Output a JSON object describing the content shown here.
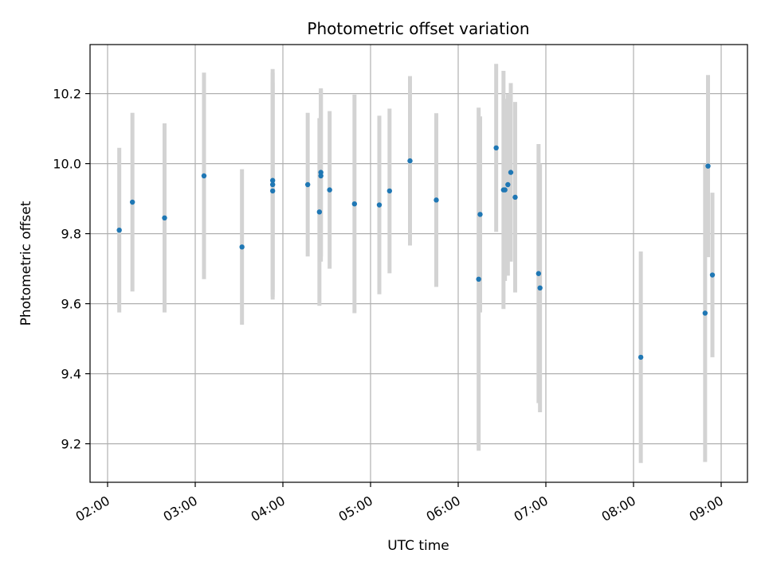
{
  "chart_data": {
    "type": "scatter",
    "title": "Photometric offset variation",
    "xlabel": "UTC time",
    "ylabel": "Photometric offset",
    "x_ticks": [
      "02:00",
      "03:00",
      "04:00",
      "05:00",
      "06:00",
      "07:00",
      "08:00",
      "09:00"
    ],
    "y_ticks": [
      "9.2",
      "9.4",
      "9.6",
      "9.8",
      "10.0",
      "10.2"
    ],
    "xlim": [
      "01:48",
      "09:18"
    ],
    "ylim": [
      9.09,
      10.34
    ],
    "grid": true,
    "colors": {
      "point": "#1f77b4",
      "errorbar": "#d3d3d3",
      "grid": "#b0b0b0"
    },
    "series": [
      {
        "points": [
          {
            "x": "02:08",
            "y": 9.81,
            "yerr": 0.235
          },
          {
            "x": "02:17",
            "y": 9.89,
            "yerr": 0.255
          },
          {
            "x": "02:39",
            "y": 9.845,
            "yerr": 0.27
          },
          {
            "x": "03:06",
            "y": 9.965,
            "yerr": 0.295
          },
          {
            "x": "03:32",
            "y": 9.762,
            "yerr": 0.222
          },
          {
            "x": "03:53",
            "y": 9.952,
            "yerr": 0.318
          },
          {
            "x": "03:53",
            "y": 9.94,
            "yerr": 0.32
          },
          {
            "x": "03:53",
            "y": 9.922,
            "yerr": 0.31
          },
          {
            "x": "04:17",
            "y": 9.94,
            "yerr": 0.205
          },
          {
            "x": "04:25",
            "y": 9.862,
            "yerr": 0.268
          },
          {
            "x": "04:26",
            "y": 9.975,
            "yerr": 0.24
          },
          {
            "x": "04:26",
            "y": 9.965,
            "yerr": 0.245
          },
          {
            "x": "04:32",
            "y": 9.925,
            "yerr": 0.225
          },
          {
            "x": "04:49",
            "y": 9.885,
            "yerr": 0.312
          },
          {
            "x": "05:06",
            "y": 9.882,
            "yerr": 0.255
          },
          {
            "x": "05:13",
            "y": 9.922,
            "yerr": 0.235
          },
          {
            "x": "05:27",
            "y": 10.008,
            "yerr": 0.242
          },
          {
            "x": "05:45",
            "y": 9.896,
            "yerr": 0.248
          },
          {
            "x": "06:14",
            "y": 9.67,
            "yerr": 0.49
          },
          {
            "x": "06:15",
            "y": 9.855,
            "yerr": 0.28
          },
          {
            "x": "06:26",
            "y": 10.045,
            "yerr": 0.24
          },
          {
            "x": "06:31",
            "y": 9.925,
            "yerr": 0.34
          },
          {
            "x": "06:32",
            "y": 9.925,
            "yerr": 0.26
          },
          {
            "x": "06:34",
            "y": 9.94,
            "yerr": 0.26
          },
          {
            "x": "06:36",
            "y": 9.975,
            "yerr": 0.255
          },
          {
            "x": "06:39",
            "y": 9.904,
            "yerr": 0.272
          },
          {
            "x": "06:55",
            "y": 9.686,
            "yerr": 0.37
          },
          {
            "x": "06:56",
            "y": 9.645,
            "yerr": 0.355
          },
          {
            "x": "08:05",
            "y": 9.447,
            "yerr": 0.302
          },
          {
            "x": "08:49",
            "y": 9.573,
            "yerr": 0.425
          },
          {
            "x": "08:51",
            "y": 9.993,
            "yerr": 0.26
          },
          {
            "x": "08:54",
            "y": 9.682,
            "yerr": 0.235
          }
        ]
      }
    ]
  }
}
